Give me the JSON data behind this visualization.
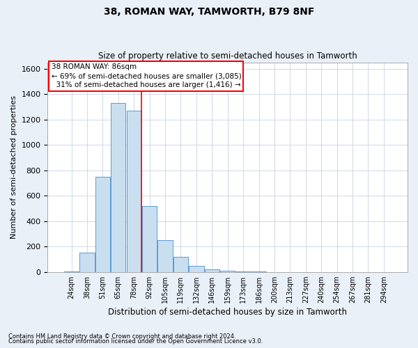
{
  "title1": "38, ROMAN WAY, TAMWORTH, B79 8NF",
  "title2": "Size of property relative to semi-detached houses in Tamworth",
  "xlabel": "Distribution of semi-detached houses by size in Tamworth",
  "ylabel": "Number of semi-detached properties",
  "footnote1": "Contains HM Land Registry data © Crown copyright and database right 2024.",
  "footnote2": "Contains public sector information licensed under the Open Government Licence v3.0.",
  "bar_labels": [
    "24sqm",
    "38sqm",
    "51sqm",
    "65sqm",
    "78sqm",
    "92sqm",
    "105sqm",
    "119sqm",
    "132sqm",
    "146sqm",
    "159sqm",
    "173sqm",
    "186sqm",
    "200sqm",
    "213sqm",
    "227sqm",
    "240sqm",
    "254sqm",
    "267sqm",
    "281sqm",
    "294sqm"
  ],
  "bar_values": [
    5,
    150,
    750,
    1330,
    1270,
    520,
    250,
    120,
    50,
    20,
    10,
    5,
    2,
    0,
    1,
    0,
    0,
    0,
    0,
    0,
    1
  ],
  "bar_color": "#c9dff0",
  "bar_edge_color": "#5b9bd5",
  "grid_color": "#d0d8e8",
  "annotation_text1": "38 ROMAN WAY: 86sqm",
  "annotation_text2": "← 69% of semi-detached houses are smaller (3,085)",
  "annotation_text3": "  31% of semi-detached houses are larger (1,416) →",
  "annotation_box_color": "white",
  "annotation_box_edgecolor": "red",
  "red_line_color": "red",
  "ylim": [
    0,
    1650
  ],
  "yticks": [
    0,
    200,
    400,
    600,
    800,
    1000,
    1200,
    1400,
    1600
  ],
  "background_color": "#eaf0f8",
  "plot_bg_color": "white",
  "red_line_index": 4.5
}
